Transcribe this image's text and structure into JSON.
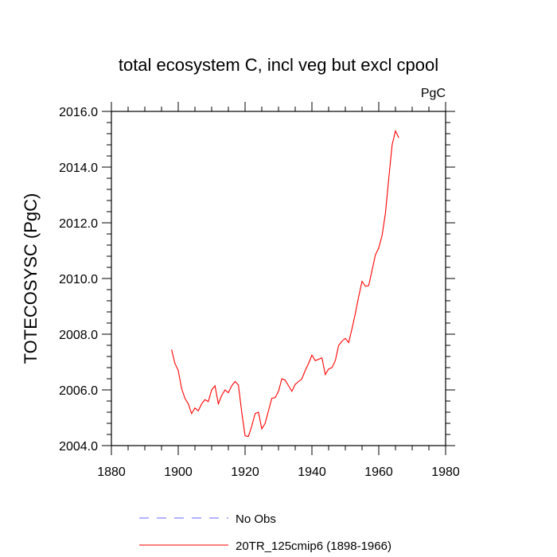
{
  "chart_data": {
    "type": "line",
    "title": "total ecosystem C, incl veg but excl cpool",
    "units": "PgC",
    "ylabel": "TOTECOSYSC  (PgC)",
    "xlabel": "",
    "xlim": [
      1880,
      1980
    ],
    "ylim": [
      2004.0,
      2016.0
    ],
    "x_ticks": [
      1880,
      1900,
      1920,
      1940,
      1960,
      1980
    ],
    "x_tick_labels": [
      "1880",
      "1900",
      "1920",
      "1940",
      "1960",
      "1980"
    ],
    "y_ticks": [
      2004.0,
      2006.0,
      2008.0,
      2010.0,
      2012.0,
      2014.0,
      2016.0
    ],
    "y_tick_labels": [
      "2004.0",
      "2006.0",
      "2008.0",
      "2010.0",
      "2012.0",
      "2014.0",
      "2016.0"
    ],
    "grid": false,
    "legend_position": "bottom",
    "series": [
      {
        "name": "No Obs",
        "color": "#6666ff",
        "dash": true,
        "x": [],
        "y": []
      },
      {
        "name": "20TR_125cmip6 (1898-1966)",
        "color": "#ff0000",
        "dash": false,
        "x": [
          1898,
          1899,
          1900,
          1901,
          1902,
          1903,
          1904,
          1905,
          1906,
          1907,
          1908,
          1909,
          1910,
          1911,
          1912,
          1913,
          1914,
          1915,
          1916,
          1917,
          1918,
          1919,
          1920,
          1921,
          1922,
          1923,
          1924,
          1925,
          1926,
          1927,
          1928,
          1929,
          1930,
          1931,
          1932,
          1933,
          1934,
          1935,
          1936,
          1937,
          1938,
          1939,
          1940,
          1941,
          1942,
          1943,
          1944,
          1945,
          1946,
          1947,
          1948,
          1949,
          1950,
          1951,
          1952,
          1953,
          1954,
          1955,
          1956,
          1957,
          1958,
          1959,
          1960,
          1961,
          1962,
          1963,
          1964,
          1965,
          1966
        ],
        "y": [
          2007.45,
          2006.95,
          2006.7,
          2006.05,
          2005.7,
          2005.5,
          2005.15,
          2005.35,
          2005.25,
          2005.5,
          2005.65,
          2005.58,
          2006.0,
          2006.15,
          2005.5,
          2005.8,
          2006.0,
          2005.9,
          2006.15,
          2006.3,
          2006.18,
          2005.2,
          2004.35,
          2004.33,
          2004.7,
          2005.15,
          2005.2,
          2004.6,
          2004.8,
          2005.25,
          2005.7,
          2005.72,
          2005.95,
          2006.4,
          2006.35,
          2006.15,
          2005.95,
          2006.2,
          2006.3,
          2006.4,
          2006.7,
          2006.95,
          2007.25,
          2007.05,
          2007.1,
          2007.15,
          2006.55,
          2006.75,
          2006.8,
          2007.05,
          2007.6,
          2007.75,
          2007.85,
          2007.7,
          2008.2,
          2008.75,
          2009.35,
          2009.9,
          2009.72,
          2009.75,
          2010.3,
          2010.85,
          2011.1,
          2011.55,
          2012.35,
          2013.6,
          2014.8,
          2015.3,
          2015.05
        ]
      }
    ]
  }
}
